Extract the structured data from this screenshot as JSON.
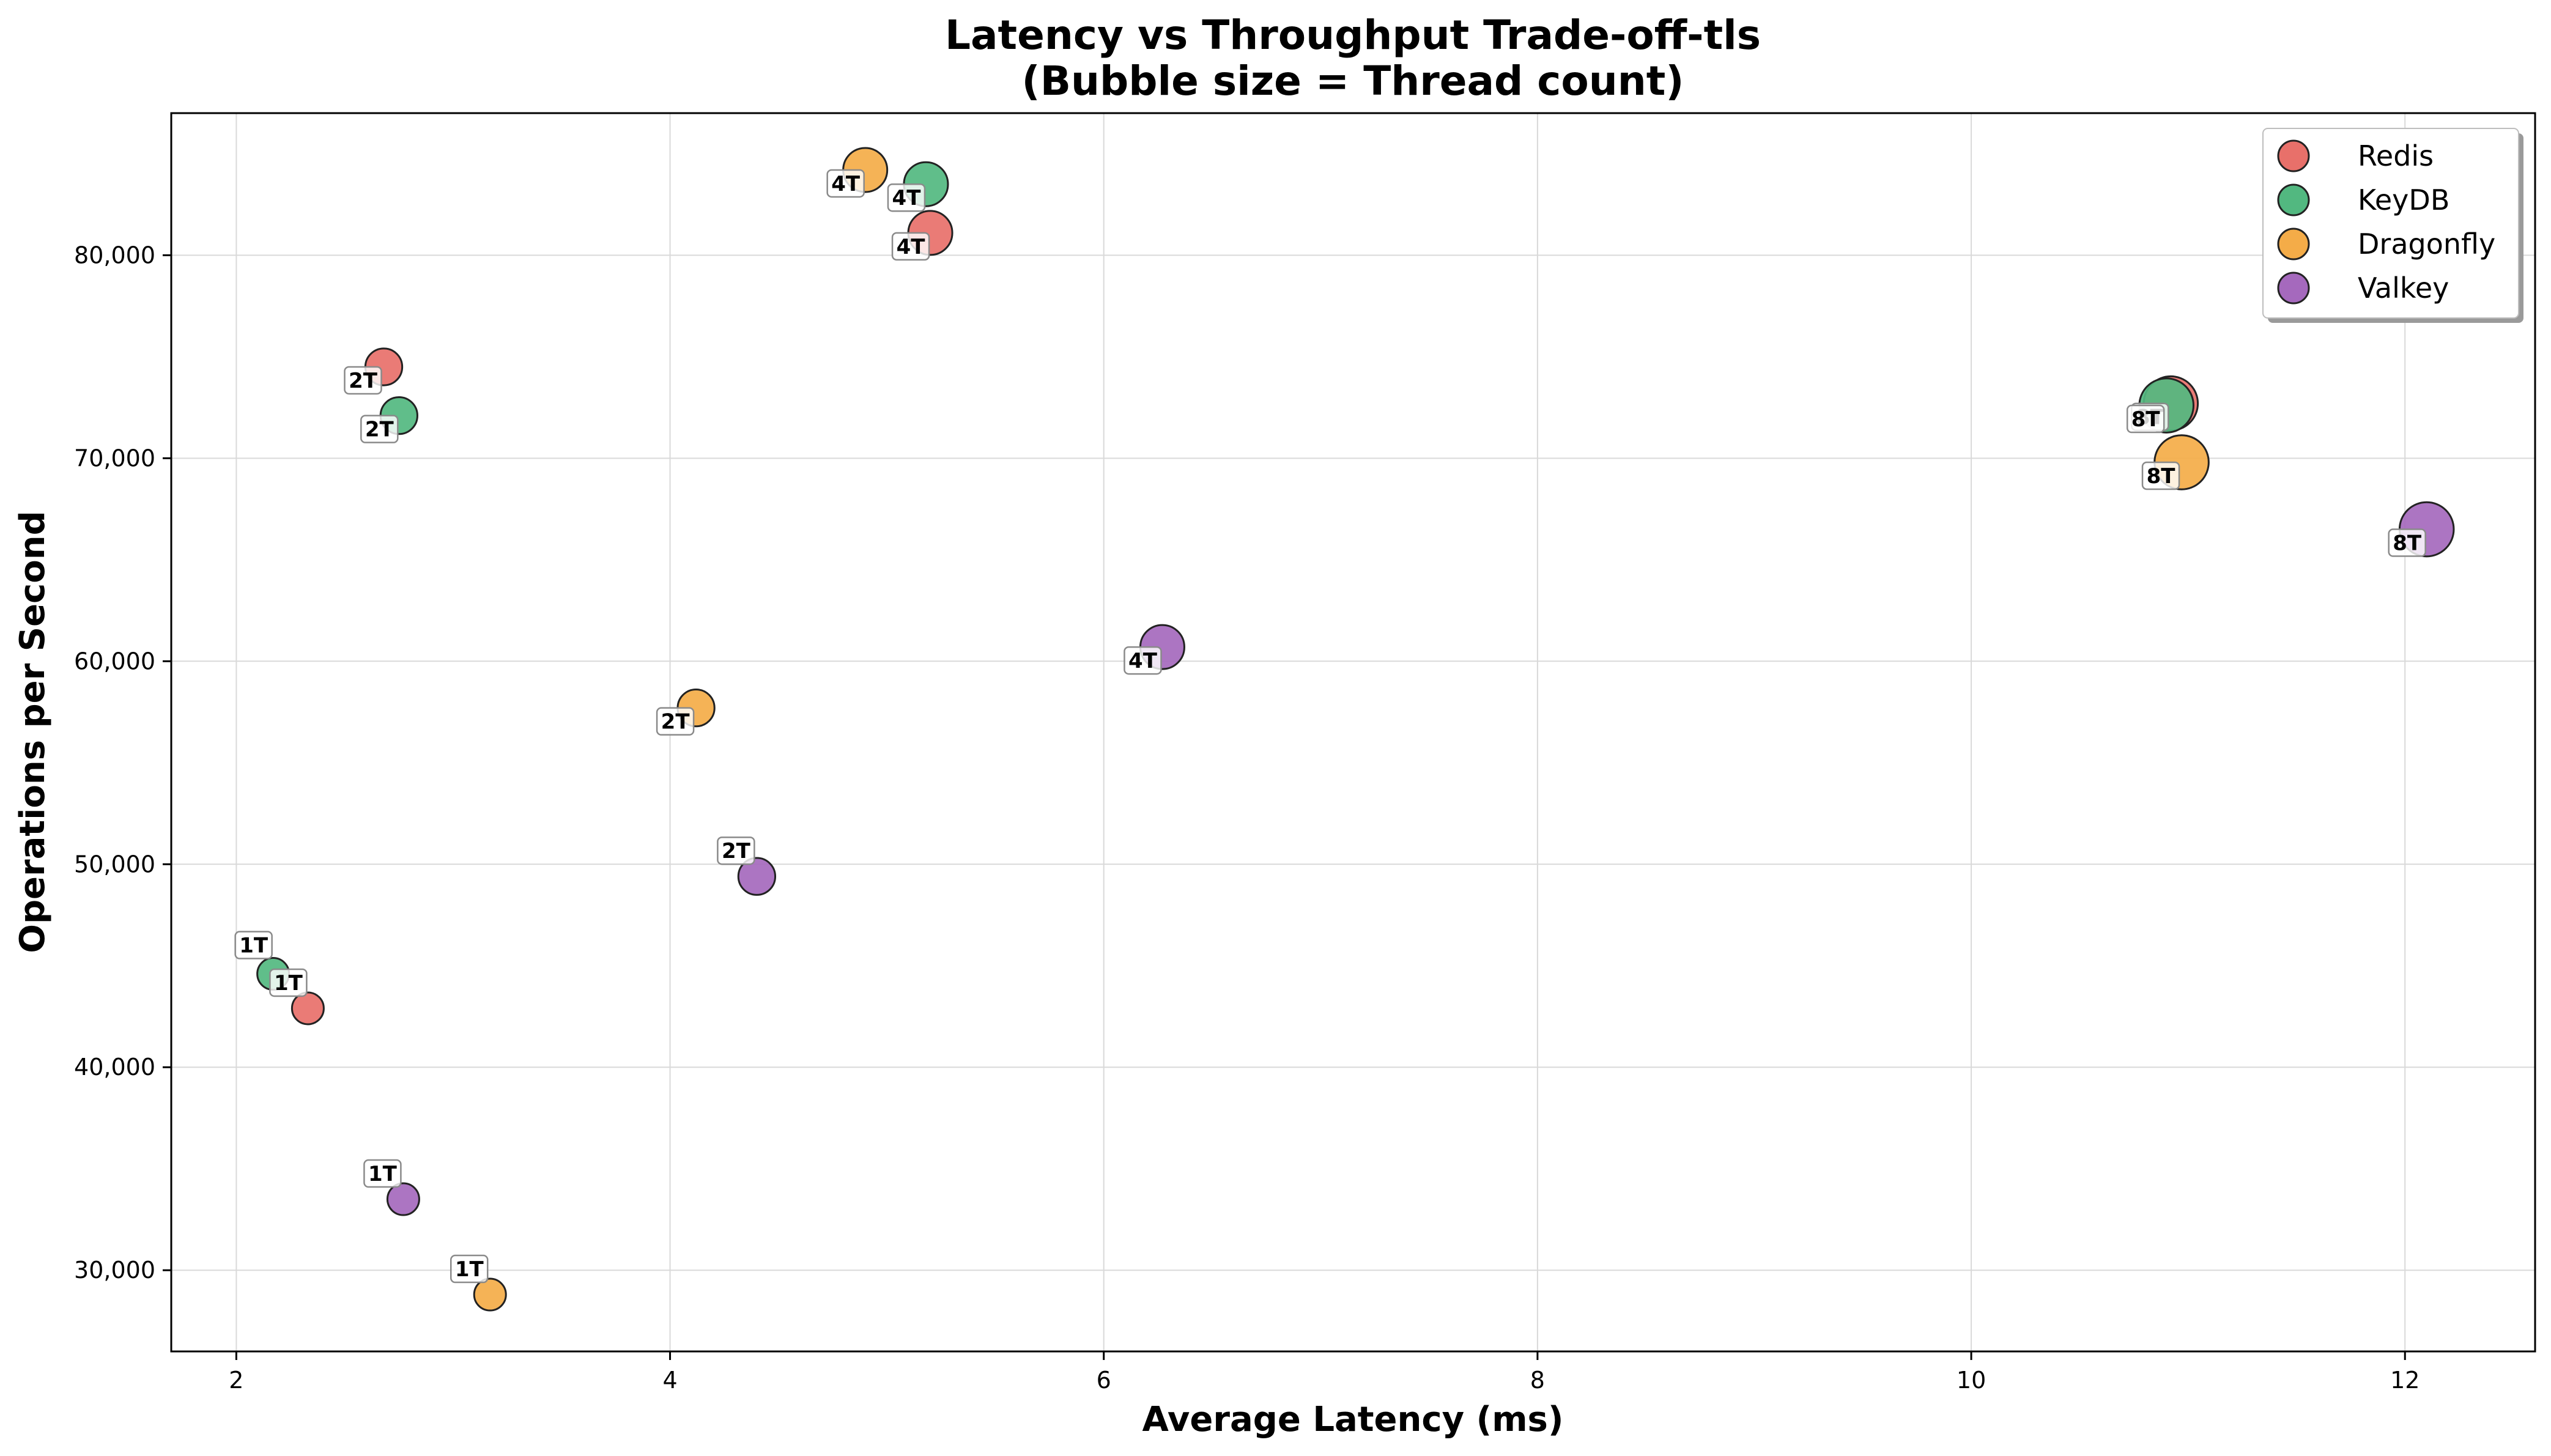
{
  "chart_data": {
    "type": "scatter",
    "title": "Latency vs Throughput Trade-off-tls",
    "subtitle": "(Bubble size = Thread count)",
    "xlabel": "Average Latency (ms)",
    "ylabel": "Operations per Second",
    "xlim": [
      1.7,
      12.6
    ],
    "ylim": [
      26000,
      87000
    ],
    "x_ticks": [
      2,
      4,
      6,
      8,
      10,
      12
    ],
    "y_ticks": [
      30000,
      40000,
      50000,
      60000,
      70000,
      80000
    ],
    "x_tick_labels": [
      "2",
      "4",
      "6",
      "8",
      "10",
      "12"
    ],
    "y_tick_labels": [
      "30,000",
      "40,000",
      "50,000",
      "60,000",
      "70,000",
      "80,000"
    ],
    "grid": true,
    "legend_position": "top-right",
    "bubble_size_encodes": "threads",
    "series": [
      {
        "name": "Redis",
        "color": "#e8706a",
        "points": [
          {
            "x": 2.33,
            "y": 42900,
            "threads": 1,
            "label": "1T"
          },
          {
            "x": 2.68,
            "y": 74500,
            "threads": 2,
            "label": "2T"
          },
          {
            "x": 5.2,
            "y": 81100,
            "threads": 4,
            "label": "4T"
          },
          {
            "x": 10.92,
            "y": 72700,
            "threads": 8,
            "label": "8T"
          }
        ]
      },
      {
        "name": "KeyDB",
        "color": "#52b880",
        "points": [
          {
            "x": 2.17,
            "y": 44600,
            "threads": 1,
            "label": "1T"
          },
          {
            "x": 2.75,
            "y": 72100,
            "threads": 2,
            "label": "2T"
          },
          {
            "x": 5.18,
            "y": 83500,
            "threads": 4,
            "label": "4T"
          },
          {
            "x": 10.9,
            "y": 72600,
            "threads": 8,
            "label": "8T"
          }
        ]
      },
      {
        "name": "Dragonfly",
        "color": "#f4ac48",
        "points": [
          {
            "x": 3.17,
            "y": 28800,
            "threads": 1,
            "label": "1T"
          },
          {
            "x": 4.12,
            "y": 57700,
            "threads": 2,
            "label": "2T"
          },
          {
            "x": 4.9,
            "y": 84200,
            "threads": 4,
            "label": "4T"
          },
          {
            "x": 10.97,
            "y": 69800,
            "threads": 8,
            "label": "8T"
          }
        ]
      },
      {
        "name": "Valkey",
        "color": "#a569bd",
        "points": [
          {
            "x": 2.77,
            "y": 33500,
            "threads": 1,
            "label": "1T"
          },
          {
            "x": 4.4,
            "y": 49400,
            "threads": 2,
            "label": "2T"
          },
          {
            "x": 6.27,
            "y": 60700,
            "threads": 4,
            "label": "4T"
          },
          {
            "x": 12.1,
            "y": 66500,
            "threads": 8,
            "label": "8T"
          }
        ]
      }
    ]
  }
}
